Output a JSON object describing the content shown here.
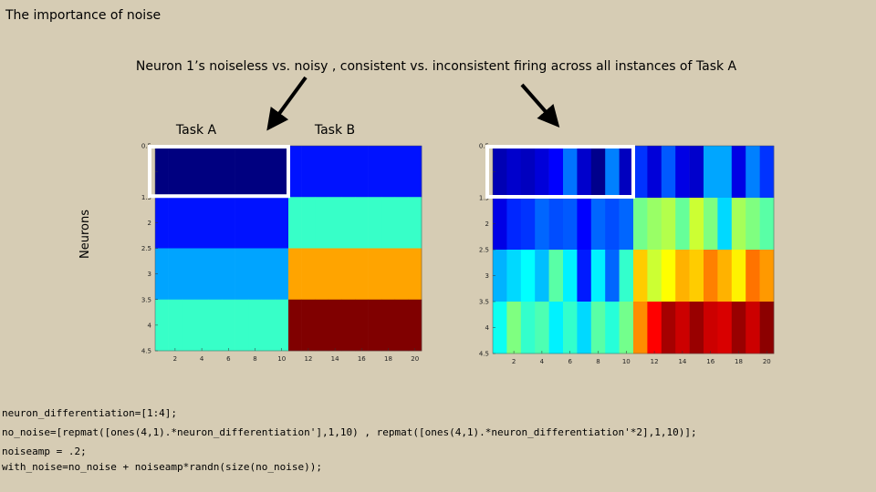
{
  "header": {
    "title": "The importance of noise"
  },
  "subtitle": "Neuron 1’s noiseless vs. noisy , consistent vs. inconsistent firing across all instances of Task A",
  "labels": {
    "task_a": "Task A",
    "task_b": "Task B",
    "ylabel": "Neurons"
  },
  "chart_data": [
    {
      "type": "heatmap",
      "colormap": "jet",
      "clim": [
        1,
        8
      ],
      "xlim": [
        0.5,
        20.5
      ],
      "ylim": [
        0.5,
        4.5
      ],
      "xticks": [
        2,
        4,
        6,
        8,
        10,
        12,
        14,
        16,
        18,
        20
      ],
      "yticks": [
        0.5,
        1,
        1.5,
        2,
        2.5,
        3,
        3.5,
        4,
        4.5
      ],
      "values": [
        [
          1,
          1,
          1,
          1,
          1,
          1,
          1,
          1,
          1,
          1,
          2,
          2,
          2,
          2,
          2,
          2,
          2,
          2,
          2,
          2
        ],
        [
          2,
          2,
          2,
          2,
          2,
          2,
          2,
          2,
          2,
          2,
          4,
          4,
          4,
          4,
          4,
          4,
          4,
          4,
          4,
          4
        ],
        [
          3,
          3,
          3,
          3,
          3,
          3,
          3,
          3,
          3,
          3,
          6,
          6,
          6,
          6,
          6,
          6,
          6,
          6,
          6,
          6
        ],
        [
          4,
          4,
          4,
          4,
          4,
          4,
          4,
          4,
          4,
          4,
          8,
          8,
          8,
          8,
          8,
          8,
          8,
          8,
          8,
          8
        ]
      ]
    },
    {
      "type": "heatmap",
      "colormap": "jet",
      "clim": [
        0.6,
        8.6
      ],
      "xlim": [
        0.5,
        20.5
      ],
      "ylim": [
        0.5,
        4.5
      ],
      "xticks": [
        2,
        4,
        6,
        8,
        10,
        12,
        14,
        16,
        18,
        20
      ],
      "yticks": [
        0.5,
        1,
        1.5,
        2,
        2.5,
        3,
        3.5,
        4,
        4.5
      ],
      "values": [
        [
          1.0,
          1.2,
          1.1,
          1.3,
          1.6,
          2.5,
          1.2,
          0.7,
          2.6,
          1.1,
          2.0,
          1.3,
          2.3,
          1.4,
          1.2,
          2.9,
          2.9,
          1.4,
          2.6,
          2.0
        ],
        [
          1.4,
          1.9,
          2.0,
          2.4,
          2.2,
          2.3,
          1.6,
          2.4,
          2.2,
          2.4,
          4.5,
          4.8,
          5.0,
          4.4,
          5.2,
          4.6,
          3.3,
          4.9,
          4.6,
          4.3
        ],
        [
          3.0,
          3.3,
          3.6,
          3.1,
          4.3,
          3.5,
          1.8,
          3.5,
          2.4,
          4.0,
          6.0,
          5.2,
          5.6,
          6.2,
          6.0,
          6.6,
          6.2,
          5.7,
          6.7,
          6.4
        ],
        [
          3.7,
          4.6,
          4.0,
          4.2,
          3.5,
          4.0,
          3.3,
          4.3,
          3.9,
          4.5,
          6.5,
          7.6,
          8.3,
          8.0,
          8.4,
          8.0,
          7.9,
          8.4,
          8.0,
          8.5
        ]
      ]
    }
  ],
  "code": [
    "neuron_differentiation=[1:4];",
    "no_noise=[repmat([ones(4,1).*neuron_differentiation'],1,10) ,  repmat([ones(4,1).*neuron_differentiation'*2],1,10)];",
    "noiseamp = .2;",
    "with_noise=no_noise + noiseamp*randn(size(no_noise));"
  ]
}
